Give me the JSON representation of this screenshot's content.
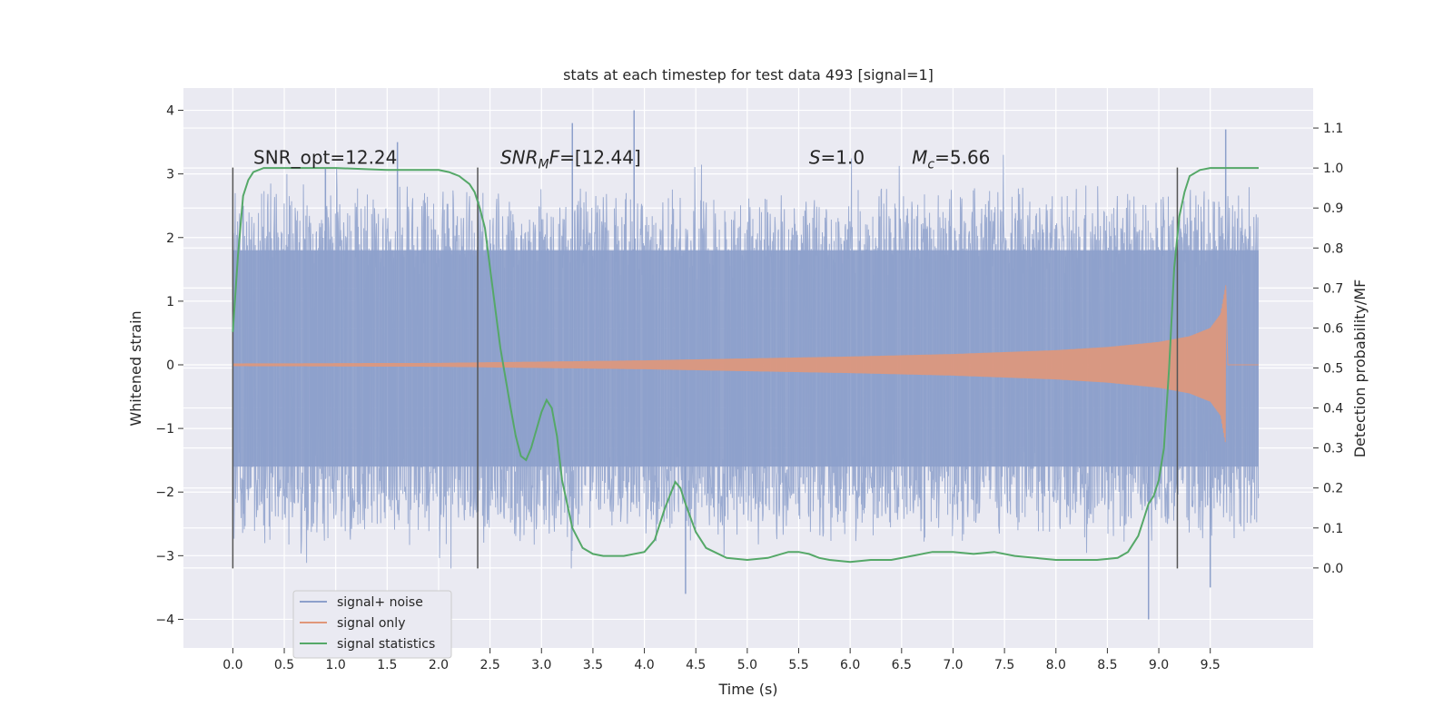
{
  "chart_data": {
    "type": "line",
    "title": "stats at each timestep for test data 493 [signal=1]",
    "xlabel": "Time (s)",
    "ylabel": "Whitened strain",
    "ylabel_right": "Detection probability/MF",
    "xlim": [
      -0.48,
      10.5
    ],
    "ylim": [
      -4.45,
      4.35
    ],
    "ylim_right": [
      -0.2,
      1.2
    ],
    "xticks": [
      0.0,
      0.5,
      1.0,
      1.5,
      2.0,
      2.5,
      3.0,
      3.5,
      4.0,
      4.5,
      5.0,
      5.5,
      6.0,
      6.5,
      7.0,
      7.5,
      8.0,
      8.5,
      9.0,
      9.5
    ],
    "xtick_labels": [
      "0.0",
      "0.5",
      "1.0",
      "1.5",
      "2.0",
      "2.5",
      "3.0",
      "3.5",
      "4.0",
      "4.5",
      "5.0",
      "5.5",
      "6.0",
      "6.5",
      "7.0",
      "7.5",
      "8.0",
      "8.5",
      "9.0",
      "9.5"
    ],
    "yticks": [
      -4,
      -3,
      -2,
      -1,
      0,
      1,
      2,
      3,
      4
    ],
    "ytick_labels": [
      "−4",
      "−3",
      "−2",
      "−1",
      "0",
      "1",
      "2",
      "3",
      "4"
    ],
    "yticks_right": [
      0.0,
      0.1,
      0.2,
      0.3,
      0.4,
      0.5,
      0.6,
      0.7,
      0.8,
      0.9,
      1.0,
      1.1
    ],
    "ytick_labels_right": [
      "0.0",
      "0.1",
      "0.2",
      "0.3",
      "0.4",
      "0.5",
      "0.6",
      "0.7",
      "0.8",
      "0.9",
      "1.0",
      "1.1"
    ],
    "grid": true,
    "legend_position": "lower-left",
    "colors": {
      "signal_noise": "#8da0cb",
      "signal_only": "#e0977a",
      "signal_stats": "#55a868",
      "background": "#eaeaf2",
      "markers": "#555555"
    },
    "series": [
      {
        "name": "signal+ noise",
        "axis": "left",
        "kind": "noisy_strain",
        "x_range": [
          0.0,
          9.97
        ],
        "typical_amplitude": [
          -1.6,
          1.8
        ],
        "peaks_x": [
          0.1,
          0.9,
          1.6,
          3.3,
          3.9,
          4.4,
          8.9,
          9.5,
          9.65
        ],
        "peaks_y": [
          2.5,
          3.1,
          3.5,
          3.8,
          4.0,
          -3.6,
          -4.0,
          -3.5,
          3.7
        ]
      },
      {
        "name": "signal only",
        "axis": "left",
        "kind": "chirp_envelope",
        "x_range": [
          0.0,
          9.65
        ],
        "x": [
          0.0,
          2.0,
          4.0,
          5.0,
          6.0,
          7.0,
          8.0,
          8.5,
          9.0,
          9.3,
          9.5,
          9.6,
          9.65
        ],
        "amplitude": [
          0.02,
          0.03,
          0.07,
          0.1,
          0.13,
          0.17,
          0.23,
          0.28,
          0.36,
          0.45,
          0.58,
          0.8,
          1.25
        ]
      },
      {
        "name": "signal statistics",
        "axis": "right",
        "x": [
          0.0,
          0.05,
          0.1,
          0.15,
          0.2,
          0.3,
          0.5,
          1.0,
          1.5,
          1.7,
          2.0,
          2.1,
          2.2,
          2.3,
          2.35,
          2.4,
          2.45,
          2.5,
          2.55,
          2.6,
          2.7,
          2.75,
          2.8,
          2.85,
          2.9,
          3.0,
          3.05,
          3.1,
          3.15,
          3.2,
          3.3,
          3.4,
          3.5,
          3.6,
          3.8,
          4.0,
          4.1,
          4.2,
          4.3,
          4.35,
          4.4,
          4.5,
          4.6,
          4.8,
          5.0,
          5.2,
          5.4,
          5.5,
          5.6,
          5.7,
          5.8,
          6.0,
          6.2,
          6.4,
          6.6,
          6.8,
          7.0,
          7.2,
          7.4,
          7.6,
          7.8,
          8.0,
          8.2,
          8.4,
          8.6,
          8.7,
          8.8,
          8.85,
          8.9,
          8.95,
          9.0,
          9.05,
          9.1,
          9.15,
          9.2,
          9.25,
          9.3,
          9.4,
          9.5,
          9.6,
          9.97
        ],
        "y": [
          0.59,
          0.78,
          0.93,
          0.97,
          0.99,
          1.0,
          1.0,
          1.0,
          0.995,
          0.995,
          0.995,
          0.99,
          0.98,
          0.96,
          0.94,
          0.9,
          0.85,
          0.75,
          0.65,
          0.55,
          0.4,
          0.33,
          0.28,
          0.27,
          0.3,
          0.39,
          0.42,
          0.4,
          0.33,
          0.22,
          0.1,
          0.05,
          0.035,
          0.03,
          0.03,
          0.04,
          0.07,
          0.15,
          0.215,
          0.2,
          0.16,
          0.09,
          0.05,
          0.025,
          0.02,
          0.025,
          0.04,
          0.04,
          0.035,
          0.025,
          0.02,
          0.015,
          0.02,
          0.02,
          0.03,
          0.04,
          0.04,
          0.035,
          0.04,
          0.03,
          0.025,
          0.02,
          0.02,
          0.02,
          0.025,
          0.04,
          0.08,
          0.12,
          0.16,
          0.18,
          0.22,
          0.3,
          0.5,
          0.75,
          0.88,
          0.94,
          0.98,
          0.995,
          1.0,
          1.0,
          1.0
        ]
      }
    ],
    "vertical_markers_x": [
      0.0,
      2.38,
      9.18
    ],
    "vertical_markers_yrange": [
      -3.2,
      3.1
    ],
    "annotations": [
      {
        "id": "snr_opt",
        "x": 0.2,
        "y": 3.1,
        "text": "SNR_opt=12.24"
      },
      {
        "id": "snr_mf",
        "x": 2.6,
        "y": 3.1,
        "italic": "SNR",
        "sub": "M",
        "italic2": "F",
        "rest": "=[12.44]"
      },
      {
        "id": "s",
        "x": 5.6,
        "y": 3.1,
        "italic": "S",
        "rest": "=1.0"
      },
      {
        "id": "mc",
        "x": 6.6,
        "y": 3.1,
        "italic": "M",
        "sub": "c",
        "rest": "=5.66"
      }
    ],
    "legend": [
      "signal+ noise",
      "signal only",
      "signal statistics"
    ]
  }
}
